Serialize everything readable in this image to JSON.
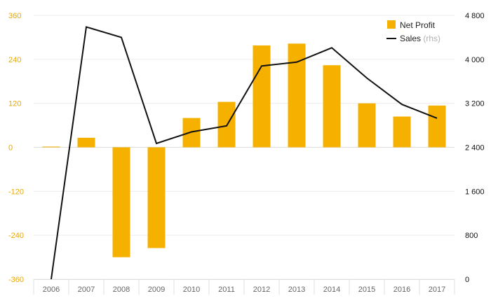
{
  "chart_data": {
    "type": "bar",
    "categories": [
      "2006",
      "2007",
      "2008",
      "2009",
      "2010",
      "2011",
      "2012",
      "2013",
      "2014",
      "2015",
      "2016",
      "2017"
    ],
    "series": [
      {
        "name": "Net Profit",
        "type": "bar",
        "axis": "left",
        "color": "#f5b000",
        "values": [
          2,
          26,
          -300,
          -275,
          80,
          124,
          278,
          283,
          224,
          120,
          84,
          114
        ]
      },
      {
        "name": "Sales",
        "type": "line",
        "axis": "right",
        "color": "#111111",
        "values": [
          0,
          4590,
          4400,
          2470,
          2680,
          2790,
          3880,
          3950,
          4210,
          3660,
          3180,
          2930
        ]
      }
    ],
    "y_left": {
      "ylim": [
        -360,
        360
      ],
      "ticks": [
        -360,
        -240,
        -120,
        0,
        120,
        240,
        360
      ],
      "tick_labels": [
        "-360",
        "-240",
        "-120",
        "0",
        "120",
        "240",
        "360"
      ],
      "tick_color": "#e8a800"
    },
    "y_right": {
      "ylim": [
        0,
        4800
      ],
      "ticks": [
        0,
        800,
        1600,
        2400,
        3200,
        4000,
        4800
      ],
      "tick_labels": [
        "0",
        "800",
        "1 600",
        "2 400",
        "3 200",
        "4 000",
        "4 800"
      ],
      "tick_color": "#111111"
    },
    "legend": {
      "placement": "top-right",
      "items": [
        {
          "label": "Net Profit",
          "suffix": ""
        },
        {
          "label": "Sales",
          "suffix": "(rhs)"
        }
      ]
    },
    "grid": true,
    "title": "",
    "xlabel": "",
    "ylabel": ""
  }
}
